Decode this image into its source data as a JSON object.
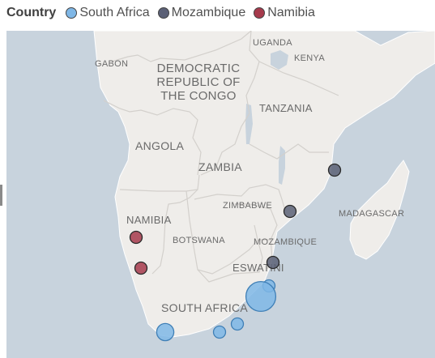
{
  "legend": {
    "title": "Country",
    "items": [
      {
        "label": "South Africa",
        "color": "#7fb7e6"
      },
      {
        "label": "Mozambique",
        "color": "#5b6076"
      },
      {
        "label": "Namibia",
        "color": "#a63a4c"
      }
    ]
  },
  "map": {
    "ocean_color": "#c8d3dd",
    "land_color": "#efedea",
    "country_labels": {
      "uganda": "UGANDA",
      "kenya": "KENYA",
      "gabon": "GABON",
      "drc_line1": "DEMOCRATIC",
      "drc_line2": "REPUBLIC OF",
      "drc_line3": "THE CONGO",
      "tanzania": "TANZANIA",
      "angola": "ANGOLA",
      "zambia": "ZAMBIA",
      "zimbabwe": "ZIMBABWE",
      "madagascar": "MADAGASCAR",
      "namibia": "NAMIBIA",
      "botswana": "BOTSWANA",
      "mozambique": "MOZAMBIQUE",
      "eswatini": "ESWATINI",
      "south_africa": "SOUTH AFRICA"
    }
  },
  "bubbles": [
    {
      "country": "Mozambique",
      "size": 1
    },
    {
      "country": "Mozambique",
      "size": 1
    },
    {
      "country": "Mozambique",
      "size": 1
    },
    {
      "country": "Namibia",
      "size": 1
    },
    {
      "country": "Namibia",
      "size": 1
    },
    {
      "country": "South Africa",
      "size": 1
    },
    {
      "country": "South Africa",
      "size": 6
    },
    {
      "country": "South Africa",
      "size": 1
    },
    {
      "country": "South Africa",
      "size": 1
    },
    {
      "country": "South Africa",
      "size": 2
    }
  ]
}
